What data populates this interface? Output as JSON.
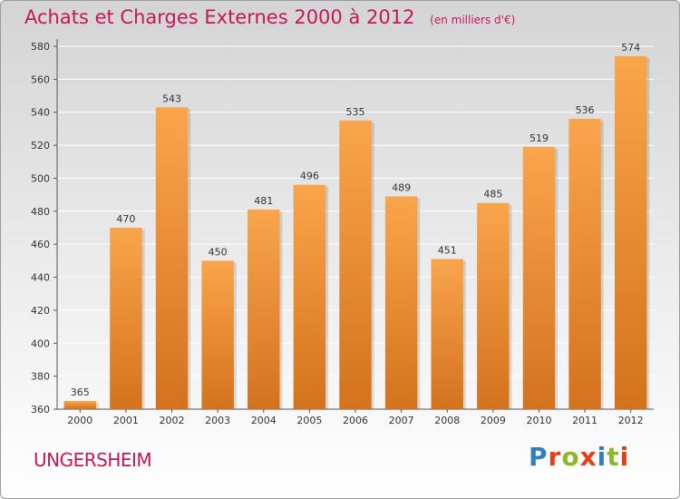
{
  "header": {
    "title": "Achats et Charges Externes 2000 à 2012",
    "subtitle": "(en milliers d'€)"
  },
  "footer": {
    "place": "UNGERSHEIM",
    "logo": "Proxiti"
  },
  "colors": {
    "title": "#c2185b",
    "bar_light": "#f9a54c",
    "bar_dark": "#d4721d",
    "logo_letters": [
      "#2f7fc1",
      "#e2401c",
      "#8cb82b",
      "#e2401c",
      "#2f7fc1",
      "#8cb82b",
      "#e2401c"
    ]
  },
  "chart_data": {
    "type": "bar",
    "title": "Achats et Charges Externes 2000 à 2012",
    "subtitle": "(en milliers d'€)",
    "categories": [
      "2000",
      "2001",
      "2002",
      "2003",
      "2004",
      "2005",
      "2006",
      "2007",
      "2008",
      "2009",
      "2010",
      "2011",
      "2012"
    ],
    "values": [
      365,
      470,
      543,
      450,
      481,
      496,
      535,
      489,
      451,
      485,
      519,
      536,
      574
    ],
    "ylim": [
      360,
      580
    ],
    "yticks": [
      360,
      380,
      400,
      420,
      440,
      460,
      480,
      500,
      520,
      540,
      560,
      580
    ],
    "xlabel": "",
    "ylabel": "",
    "grid": true,
    "legend": "none"
  }
}
